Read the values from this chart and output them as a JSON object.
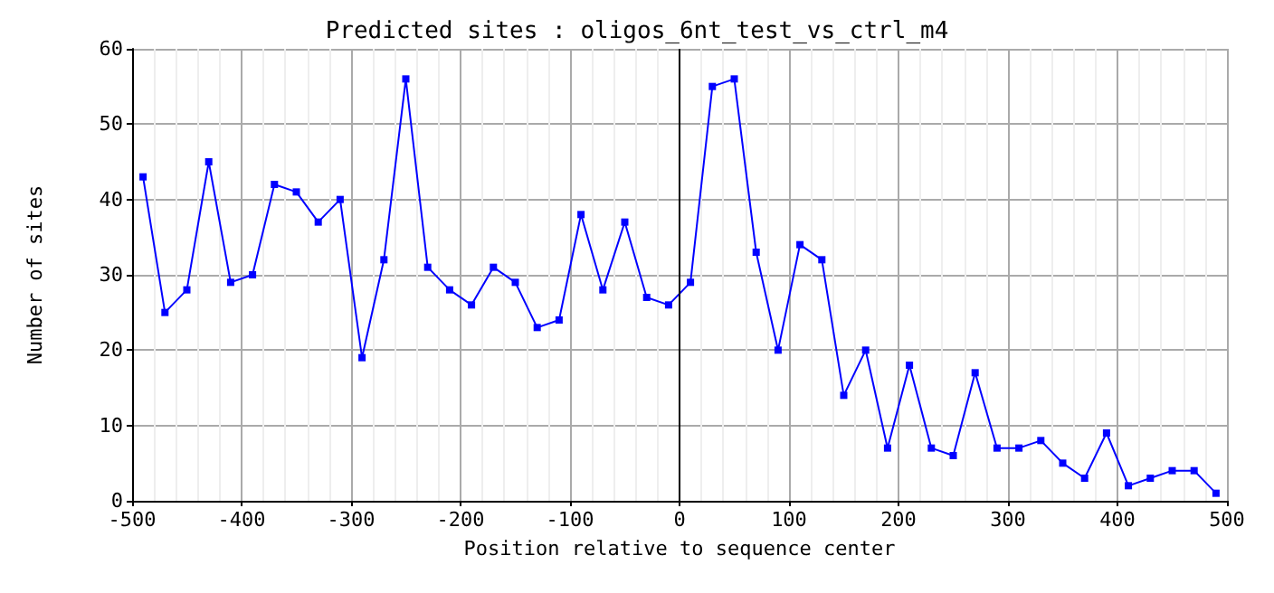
{
  "chart_data": {
    "type": "line",
    "title": "Predicted sites : oligos_6nt_test_vs_ctrl_m4",
    "xlabel": "Position relative to sequence center",
    "ylabel": "Number of sites",
    "x": [
      -490,
      -470,
      -450,
      -430,
      -410,
      -390,
      -370,
      -350,
      -330,
      -310,
      -290,
      -270,
      -250,
      -230,
      -210,
      -190,
      -170,
      -150,
      -130,
      -110,
      -90,
      -70,
      -50,
      -30,
      -10,
      10,
      30,
      50,
      70,
      90,
      110,
      130,
      150,
      170,
      190,
      210,
      230,
      250,
      270,
      290,
      310,
      330,
      350,
      370,
      390,
      410,
      430,
      450,
      470,
      490
    ],
    "series": [
      {
        "color": "#0000ff",
        "values": [
          43,
          25,
          28,
          45,
          29,
          30,
          42,
          41,
          37,
          40,
          19,
          32,
          56,
          31,
          28,
          26,
          31,
          29,
          23,
          24,
          38,
          28,
          37,
          27,
          26,
          29,
          55,
          56,
          33,
          20,
          34,
          32,
          14,
          20,
          7,
          18,
          7,
          6,
          17,
          7,
          7,
          8,
          5,
          3,
          9,
          2,
          3,
          4,
          4,
          1
        ]
      }
    ],
    "xlim": [
      -500,
      500
    ],
    "xticks": [
      -500,
      -400,
      -300,
      -200,
      -100,
      0,
      100,
      200,
      300,
      400,
      500
    ],
    "ylim": [
      0,
      60
    ],
    "yticks": [
      0,
      10,
      20,
      30,
      40,
      50,
      60
    ],
    "ref_lines": [
      {
        "axis": "x",
        "value": 0,
        "color": "#000000"
      }
    ],
    "grid": true,
    "marker": "square",
    "line_style": "solid"
  }
}
